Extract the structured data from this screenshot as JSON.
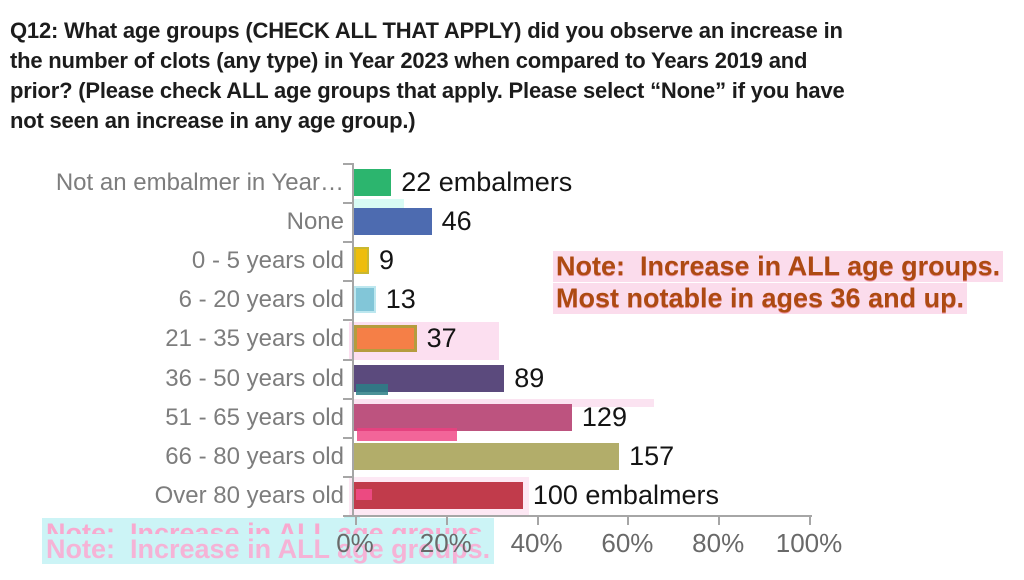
{
  "title": {
    "lines": [
      "Q12: What age groups (CHECK ALL THAT APPLY) did you observe an increase in",
      "the number of clots (any type) in Year 2023 when compared to Years 2019 and",
      "prior? (Please check ALL age groups that apply. Please select “None” if you have",
      "not seen an increase in any age group.)"
    ]
  },
  "note": {
    "line1": "Note:  Increase in ALL age groups.",
    "line2": "Most notable in ages 36 and up.",
    "text_color": "#ad4a12",
    "highlight_color": "#fbdcec"
  },
  "watermark": {
    "text": "Note:  Increase in ALL age groups.",
    "text_color": "#f8a9cf",
    "highlight_color": "#ccf4f6"
  },
  "chart_data": {
    "type": "bar",
    "orientation": "horizontal",
    "title": "Q12: What age groups (CHECK ALL THAT APPLY) did you observe an increase in the number of clots (any type) in Year 2023 when compared to Years 2019 and prior? (Please check ALL age groups that apply. Please select “None” if you have not seen an increase in any age group.)",
    "categories": [
      "Not an embalmer in Year…",
      "None",
      "0 - 5 years old",
      "6 - 20 years old",
      "21 - 35 years old",
      "36 - 50 years old",
      "51 - 65 years old",
      "66 - 80 years old",
      "Over 80 years old"
    ],
    "values": [
      22,
      46,
      9,
      13,
      37,
      89,
      129,
      157,
      100
    ],
    "value_labels": [
      "22 embalmers",
      "46",
      "9",
      "13",
      "37",
      "89",
      "129",
      "157",
      "100 embalmers"
    ],
    "percents": [
      8.2,
      17.1,
      3.3,
      4.8,
      13.8,
      33.1,
      48.0,
      58.4,
      37.2
    ],
    "bar_colors": [
      "#2cb56e",
      "#4d6bb0",
      "#eebd0d",
      "#82c6d8",
      "#f57f47",
      "#5b4a7d",
      "#bd537f",
      "#b2ad6a",
      "#c13b4b"
    ],
    "x_tick_labels": [
      "0%",
      "20%",
      "40%",
      "60%",
      "80%",
      "100%"
    ],
    "xlim": [
      0,
      100
    ],
    "xlabel": "",
    "ylabel": "",
    "grid": false,
    "legend": false,
    "axis_color": "#a6a6a6",
    "category_label_color": "#7d7d7d",
    "value_label_color": "#141414",
    "annotations": [
      "Note:  Increase in ALL age groups. Most notable in ages 36 and up.",
      "Note:  Increase in ALL age groups."
    ]
  }
}
